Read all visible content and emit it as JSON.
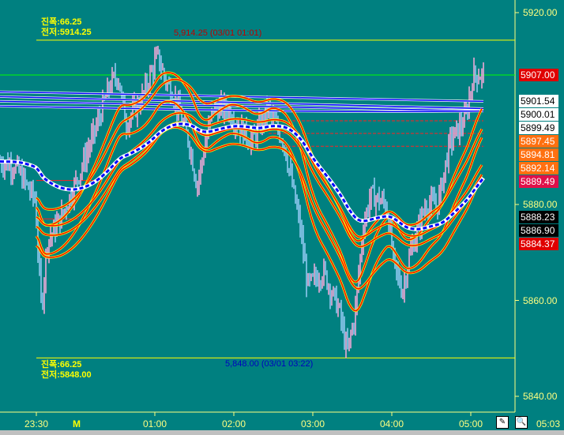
{
  "chart_data": {
    "type": "candlestick",
    "ylim": [
      5836,
      5922
    ],
    "y_ticks": [
      "5920.00",
      "5880.00",
      "5860.00",
      "5840.00"
    ],
    "x_ticks": [
      "23:30",
      "01:00",
      "02:00",
      "03:00",
      "04:00",
      "05:00"
    ],
    "x_marker": "M",
    "last_time": "05:03",
    "price_path": [
      [
        "23:02",
        5889
      ],
      [
        "23:14",
        5888
      ],
      [
        "23:29",
        5881
      ],
      [
        "23:34",
        5858
      ],
      [
        "23:38",
        5872
      ],
      [
        "23:50",
        5878
      ],
      [
        "00:02",
        5886
      ],
      [
        "00:14",
        5895
      ],
      [
        "00:26",
        5905
      ],
      [
        "00:32",
        5907
      ],
      [
        "00:38",
        5897
      ],
      [
        "00:50",
        5902
      ],
      [
        "01:02",
        5911
      ],
      [
        "01:08",
        5906
      ],
      [
        "01:14",
        5903
      ],
      [
        "01:26",
        5893
      ],
      [
        "01:32",
        5884
      ],
      [
        "01:44",
        5900
      ],
      [
        "01:56",
        5900
      ],
      [
        "02:02",
        5897
      ],
      [
        "02:14",
        5893
      ],
      [
        "02:26",
        5900
      ],
      [
        "02:38",
        5893
      ],
      [
        "02:50",
        5876
      ],
      [
        "02:56",
        5863
      ],
      [
        "03:08",
        5866
      ],
      [
        "03:20",
        5858
      ],
      [
        "03:26",
        5849
      ],
      [
        "03:32",
        5857
      ],
      [
        "03:38",
        5875
      ],
      [
        "03:44",
        5882
      ],
      [
        "03:56",
        5880
      ],
      [
        "04:02",
        5867
      ],
      [
        "04:08",
        5862
      ],
      [
        "04:14",
        5870
      ],
      [
        "04:26",
        5880
      ],
      [
        "04:35",
        5880
      ],
      [
        "04:44",
        5893
      ],
      [
        "04:56",
        5898
      ],
      [
        "05:02",
        5907
      ]
    ],
    "high_line": {
      "value": 5914.25,
      "label": "5,914.25 (03/01 01:01)"
    },
    "low_line": {
      "value": 5848.0,
      "label": "5,848.00 (03/01 03:22)"
    },
    "current_line": 5907.0,
    "dashed_levels": [
      5897.45,
      5894.81,
      5892.14
    ],
    "price_labels": [
      {
        "text": "5907.00",
        "value": 5907.0,
        "bg": "#e00000",
        "fg": "#ffffff"
      },
      {
        "text": "5901.54",
        "value": 5901.54,
        "bg": "#ffffff",
        "fg": "#000000"
      },
      {
        "text": "5900.01",
        "value": 5900.01,
        "bg": "#ffffff",
        "fg": "#000000"
      },
      {
        "text": "5899.49",
        "value": 5899.49,
        "bg": "#ffffff",
        "fg": "#000000"
      },
      {
        "text": "5897.45",
        "value": 5897.45,
        "bg": "#ff7010",
        "fg": "#ffffff"
      },
      {
        "text": "5894.81",
        "value": 5894.81,
        "bg": "#ff7010",
        "fg": "#ffffff"
      },
      {
        "text": "5892.14",
        "value": 5892.14,
        "bg": "#ff7010",
        "fg": "#ffffff"
      },
      {
        "text": "5889.49",
        "value": 5889.49,
        "bg": "#e0104a",
        "fg": "#ffffff"
      },
      {
        "text": "5888.23",
        "value": 5888.23,
        "bg": "#000000",
        "fg": "#ffffff"
      },
      {
        "text": "5886.90",
        "value": 5886.9,
        "bg": "#000000",
        "fg": "#ffffff"
      },
      {
        "text": "5884.37",
        "value": 5884.37,
        "bg": "#e00000",
        "fg": "#ffffff"
      }
    ],
    "colors": {
      "up": "#f0a8d8",
      "down": "#90c8f0",
      "band": "#ff0000",
      "band_edge": "#ffff00",
      "ma_blue": "#0000ff"
    }
  },
  "info_top": {
    "range": "진폭:66.25",
    "high": "전저:5914.25"
  },
  "info_bottom": {
    "range": "진폭:66.25",
    "low": "전저:5848.00"
  }
}
